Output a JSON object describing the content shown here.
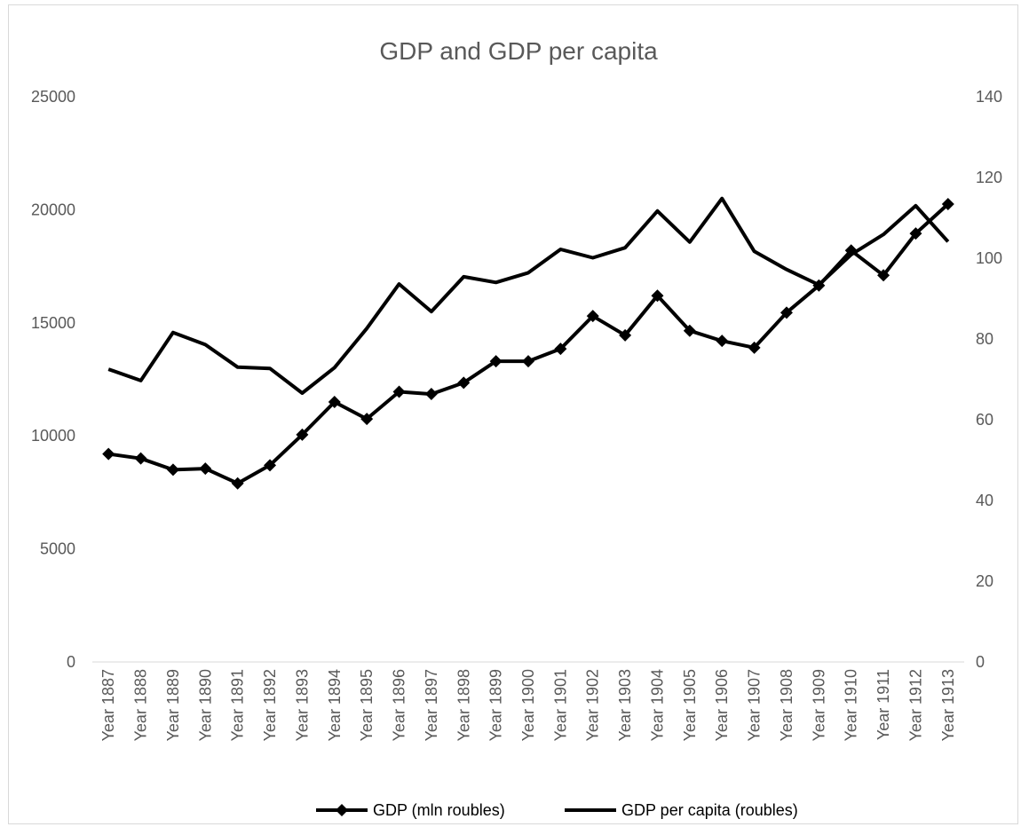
{
  "chart_data": {
    "type": "line",
    "title": "GDP and GDP per capita",
    "xlabel": "",
    "ylabel": "",
    "categories": [
      "Year 1887",
      "Year 1888",
      "Year 1889",
      "Year 1890",
      "Year 1891",
      "Year 1892",
      "Year 1893",
      "Year 1894",
      "Year 1895",
      "Year 1896",
      "Year 1897",
      "Year 1898",
      "Year 1899",
      "Year 1900",
      "Year 1901",
      "Year 1902",
      "Year 1903",
      "Year 1904",
      "Year 1905",
      "Year 1906",
      "Year 1907",
      "Year 1908",
      "Year 1909",
      "Year 1910",
      "Year 1911",
      "Year 1912",
      "Year 1913"
    ],
    "y_left": {
      "min": 0,
      "max": 25000,
      "ticks": [
        0,
        5000,
        10000,
        15000,
        20000,
        25000
      ]
    },
    "y_right": {
      "min": 0,
      "max": 140,
      "ticks": [
        0,
        20,
        40,
        60,
        80,
        100,
        120,
        140
      ]
    },
    "grid": false,
    "legend_position": "bottom",
    "series": [
      {
        "name": "GDP (mln roubles)",
        "axis": "left",
        "marker": "diamond",
        "color": "#000000",
        "values": [
          9200,
          9000,
          8500,
          8550,
          7900,
          8700,
          10050,
          11500,
          10750,
          11950,
          11850,
          12350,
          13300,
          13300,
          13850,
          15300,
          14450,
          16200,
          14650,
          14200,
          13900,
          15450,
          16650,
          18200,
          17100,
          18950,
          20250
        ]
      },
      {
        "name": "GDP per capita (roubles)",
        "axis": "right",
        "marker": "none",
        "color": "#000000",
        "values": [
          72.5,
          69.7,
          81.6,
          78.6,
          73.0,
          72.7,
          66.6,
          72.9,
          82.6,
          93.6,
          86.8,
          95.4,
          94.0,
          96.4,
          102.2,
          100.1,
          102.6,
          111.7,
          104.0,
          114.8,
          101.7,
          97.2,
          93.4,
          100.9,
          105.9,
          113.0,
          104.1
        ]
      }
    ]
  }
}
